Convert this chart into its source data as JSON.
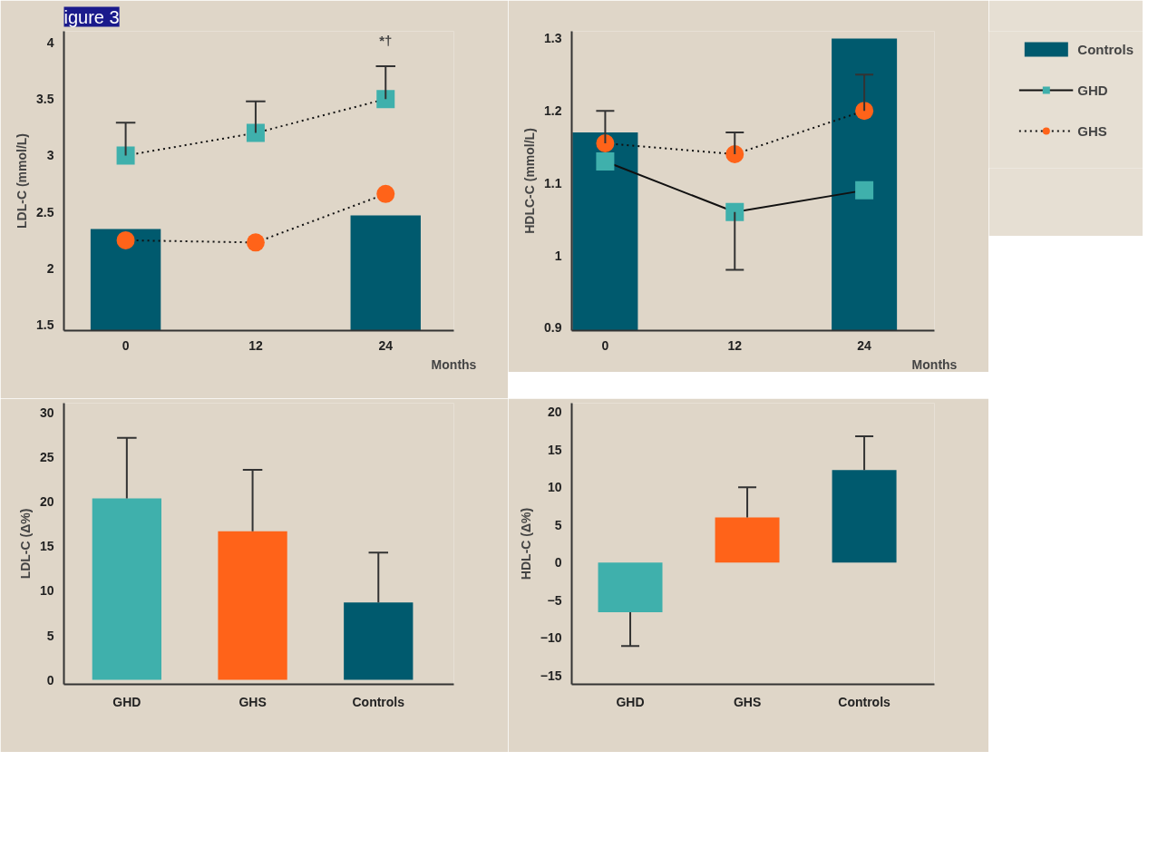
{
  "chart_data": [
    {
      "type": "line",
      "title": "igure 3",
      "ylabel": "LDL-C (mmol/L)",
      "xlabel": "Months",
      "x": [
        0,
        12,
        24
      ],
      "xlim": [
        -5.7,
        30.3
      ],
      "xticks": [
        0,
        12,
        24
      ],
      "ylim": [
        1.45,
        4.1
      ],
      "yticks": [
        1.5,
        2,
        2.5,
        3,
        3.5,
        4
      ],
      "annotations": [
        "*†"
      ],
      "series": [
        {
          "type": "bar",
          "color": "#005a6e",
          "values": [
            2.35,
            null,
            2.47
          ]
        },
        {
          "color": "#3fb0ac",
          "marker": "square",
          "line_style": "dotted",
          "values": [
            3.0,
            3.2,
            3.5
          ],
          "errors": [
            [
              3.0,
              3.29
            ],
            [
              3.2,
              3.48
            ],
            [
              3.5,
              3.79
            ]
          ]
        },
        {
          "color": "#ff6319",
          "marker": "circle",
          "line_style": "dotted",
          "values": [
            2.25,
            2.23,
            2.66
          ]
        }
      ]
    },
    {
      "type": "line",
      "ylabel": "HDLC-C (mmol/L)",
      "xlabel": "Months",
      "x": [
        0,
        12,
        24
      ],
      "xlim": [
        -3.1,
        30.5
      ],
      "xticks": [
        0,
        12,
        24
      ],
      "ylim": [
        0.896,
        1.31
      ],
      "yticks": [
        0.9,
        1,
        1.1,
        1.2,
        1.3
      ],
      "legend": "top right",
      "series": [
        {
          "type": "bar",
          "name": "Controls",
          "color": "#005a6e",
          "values": [
            1.17,
            null,
            1.3
          ]
        },
        {
          "name": "GHD",
          "color": "#3fb0ac",
          "marker": "square",
          "line_style": "solid",
          "values": [
            1.13,
            1.06,
            1.09
          ],
          "errors": [
            null,
            [
              0.98,
              1.06
            ],
            null
          ]
        },
        {
          "name": "GHS",
          "color": "#ff6319",
          "marker": "circle",
          "line_style": "dotted",
          "values": [
            1.155,
            1.14,
            1.2
          ],
          "errors": [
            [
              1.155,
              1.2
            ],
            [
              1.14,
              1.17
            ],
            [
              1.2,
              1.25
            ]
          ]
        }
      ]
    },
    {
      "type": "bar",
      "ylabel": "LDL-C (Δ%)",
      "categories": [
        "GHD",
        "GHS",
        "Controls"
      ],
      "colors": [
        "#3fb0ac",
        "#ff6319",
        "#005a6e"
      ],
      "values": [
        20.4,
        16.7,
        8.7
      ],
      "errors": [
        [
          20.4,
          27.2
        ],
        [
          16.7,
          23.6
        ],
        [
          8.7,
          14.3
        ]
      ],
      "ylim": [
        -0.5,
        31.1
      ],
      "yticks": [
        0,
        5,
        10,
        15,
        20,
        25,
        30
      ]
    },
    {
      "type": "bar",
      "ylabel": "HDL-C (Δ%)",
      "categories": [
        "GHD",
        "GHS",
        "Controls"
      ],
      "colors": [
        "#3fb0ac",
        "#ff6319",
        "#005a6e"
      ],
      "values": [
        -6.6,
        6.0,
        12.3
      ],
      "errors": [
        [
          -11.1,
          -6.6
        ],
        [
          6.0,
          10.0
        ],
        [
          12.3,
          16.8
        ]
      ],
      "ylim": [
        -16.2,
        21.2
      ],
      "yticks": [
        -15,
        -10,
        -5,
        0,
        5,
        10,
        15,
        20
      ]
    }
  ]
}
